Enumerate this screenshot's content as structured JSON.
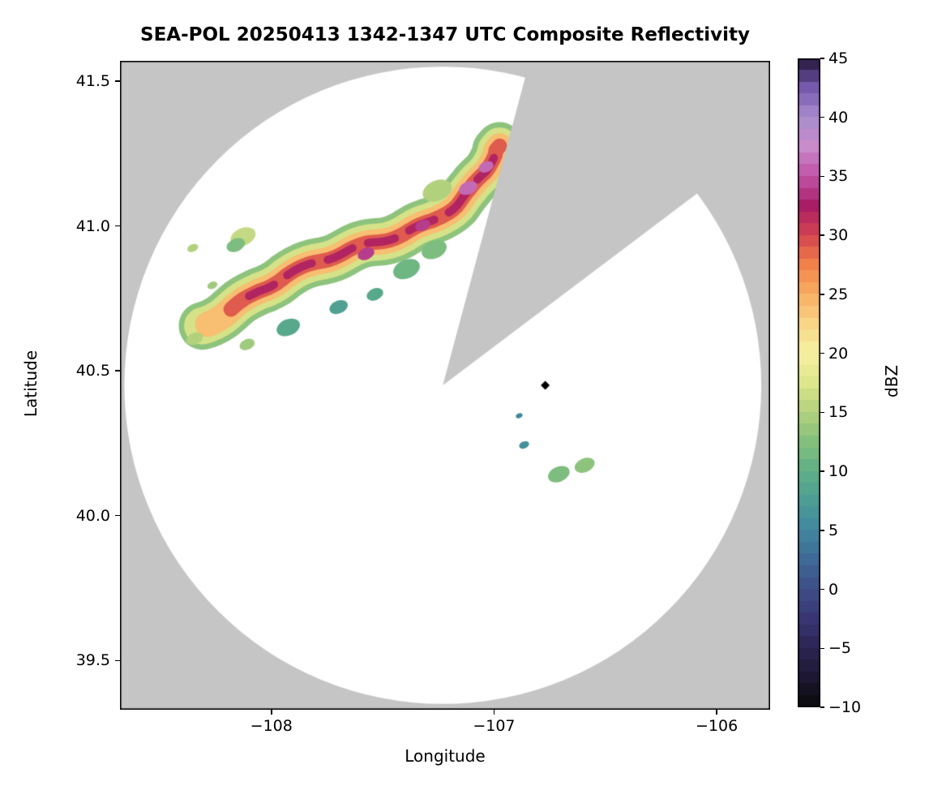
{
  "chart_data": {
    "type": "heatmap",
    "subtype": "radar-composite-reflectivity",
    "title": "SEA-POL 20250413 1342-1347 UTC Composite Reflectivity",
    "xlabel": "Longitude",
    "ylabel": "Latitude",
    "units": "dBZ",
    "xlim": [
      -108.68,
      -105.76
    ],
    "ylim": [
      39.33,
      41.57
    ],
    "grid": false,
    "plot_background": "#c5c5c5",
    "xticks": [
      {
        "value": -108,
        "label": "−108"
      },
      {
        "value": -107,
        "label": "−107"
      },
      {
        "value": -106,
        "label": "−106"
      }
    ],
    "yticks": [
      {
        "value": 41.5,
        "label": "41.5"
      },
      {
        "value": 41.0,
        "label": "41.0"
      },
      {
        "value": 40.5,
        "label": "40.5"
      },
      {
        "value": 40.0,
        "label": "40.0"
      },
      {
        "value": 39.5,
        "label": "39.5"
      }
    ],
    "colorbar": {
      "label": "dBZ",
      "position": "right",
      "range": [
        -10,
        45
      ],
      "step": 1,
      "ticks": [
        {
          "value": 45,
          "label": "45"
        },
        {
          "value": 40,
          "label": "40"
        },
        {
          "value": 35,
          "label": "35"
        },
        {
          "value": 30,
          "label": "30"
        },
        {
          "value": 25,
          "label": "25"
        },
        {
          "value": 20,
          "label": "20"
        },
        {
          "value": 15,
          "label": "15"
        },
        {
          "value": 10,
          "label": "10"
        },
        {
          "value": 5,
          "label": "5"
        },
        {
          "value": 0,
          "label": "0"
        },
        {
          "value": -5,
          "label": "−5"
        },
        {
          "value": -10,
          "label": "−10"
        }
      ],
      "colormap_stops": [
        [
          -10,
          "#0a0a0c"
        ],
        [
          -7.5,
          "#1d1733"
        ],
        [
          -5,
          "#2c2554"
        ],
        [
          -2.5,
          "#373673"
        ],
        [
          0,
          "#3e4e87"
        ],
        [
          2.5,
          "#3f6996"
        ],
        [
          5,
          "#41879f"
        ],
        [
          7.5,
          "#4d9d95"
        ],
        [
          10,
          "#60af86"
        ],
        [
          12.5,
          "#84c07d"
        ],
        [
          15,
          "#b2d17d"
        ],
        [
          17.5,
          "#dee68b"
        ],
        [
          20,
          "#f7f0a2"
        ],
        [
          22.5,
          "#f9d588"
        ],
        [
          25,
          "#f8ae62"
        ],
        [
          27.5,
          "#f28149"
        ],
        [
          30,
          "#d34250"
        ],
        [
          32.5,
          "#a81d66"
        ],
        [
          35,
          "#c053a6"
        ],
        [
          37.5,
          "#c98bc9"
        ],
        [
          40,
          "#a98ccd"
        ],
        [
          42.5,
          "#7659ad"
        ],
        [
          45,
          "#241539"
        ]
      ]
    },
    "scan_area": {
      "center_lon": -107.23,
      "center_lat": 40.45,
      "radius_deg_lat": 1.1,
      "color": "#ffffff",
      "missing_sector_az": [
        15,
        53
      ]
    },
    "site_marker": {
      "lon": -106.77,
      "lat": 40.45,
      "shape": "diamond",
      "color": "#000000"
    },
    "echo_band": {
      "points": [
        [
          -108.309,
          40.655
        ],
        [
          -108.189,
          40.717
        ],
        [
          -108.062,
          40.784
        ],
        [
          -107.938,
          40.829
        ],
        [
          -107.807,
          40.865
        ],
        [
          -107.673,
          40.899
        ],
        [
          -107.538,
          40.938
        ],
        [
          -107.407,
          40.977
        ],
        [
          -107.284,
          41.024
        ],
        [
          -107.182,
          41.075
        ],
        [
          -107.102,
          41.128
        ],
        [
          -107.036,
          41.187
        ],
        [
          -106.993,
          41.243
        ],
        [
          -106.975,
          41.276
        ]
      ],
      "layers": [
        {
          "dbz": 13,
          "width_deg": 0.165,
          "f0": 0.0,
          "f1": 1.0,
          "dash": false
        },
        {
          "dbz": 17,
          "width_deg": 0.128,
          "f0": 0.0,
          "f1": 1.0,
          "dash": false
        },
        {
          "dbz": 24,
          "width_deg": 0.088,
          "f0": 0.03,
          "f1": 1.0,
          "dash": false
        },
        {
          "dbz": 29,
          "width_deg": 0.052,
          "f0": 0.1,
          "f1": 1.0,
          "dash": false
        },
        {
          "dbz": 32,
          "width_deg": 0.028,
          "f0": 0.16,
          "f1": 0.99,
          "dash": true
        }
      ]
    },
    "echo_patches": [
      {
        "lon": -108.127,
        "lat": 40.963,
        "dbz": 16,
        "r_deg": 0.03
      },
      {
        "lon": -108.16,
        "lat": 40.934,
        "dbz": 12,
        "r_deg": 0.022
      },
      {
        "lon": -108.353,
        "lat": 40.924,
        "dbz": 15,
        "r_deg": 0.013
      },
      {
        "lon": -108.265,
        "lat": 40.795,
        "dbz": 14,
        "r_deg": 0.012
      },
      {
        "lon": -108.345,
        "lat": 40.611,
        "dbz": 15,
        "r_deg": 0.02
      },
      {
        "lon": -108.109,
        "lat": 40.591,
        "dbz": 14,
        "r_deg": 0.018
      },
      {
        "lon": -107.924,
        "lat": 40.65,
        "dbz": 9,
        "r_deg": 0.028
      },
      {
        "lon": -107.698,
        "lat": 40.72,
        "dbz": 8,
        "r_deg": 0.022
      },
      {
        "lon": -107.535,
        "lat": 40.764,
        "dbz": 9,
        "r_deg": 0.02
      },
      {
        "lon": -107.393,
        "lat": 40.851,
        "dbz": 11,
        "r_deg": 0.032
      },
      {
        "lon": -107.269,
        "lat": 40.918,
        "dbz": 12,
        "r_deg": 0.03
      },
      {
        "lon": -107.255,
        "lat": 41.122,
        "dbz": 15,
        "r_deg": 0.035
      },
      {
        "lon": -106.709,
        "lat": 40.143,
        "dbz": 12,
        "r_deg": 0.026
      },
      {
        "lon": -106.593,
        "lat": 40.174,
        "dbz": 13,
        "r_deg": 0.024
      },
      {
        "lon": -106.865,
        "lat": 40.244,
        "dbz": 6,
        "r_deg": 0.012
      },
      {
        "lon": -106.887,
        "lat": 40.345,
        "dbz": 5,
        "r_deg": 0.008
      },
      {
        "lon": -107.575,
        "lat": 40.904,
        "dbz": 34,
        "r_deg": 0.02
      },
      {
        "lon": -107.32,
        "lat": 41.002,
        "dbz": 34,
        "r_deg": 0.018
      },
      {
        "lon": -107.116,
        "lat": 41.131,
        "dbz": 36,
        "r_deg": 0.022
      },
      {
        "lon": -107.036,
        "lat": 41.204,
        "dbz": 36,
        "r_deg": 0.018
      }
    ]
  }
}
